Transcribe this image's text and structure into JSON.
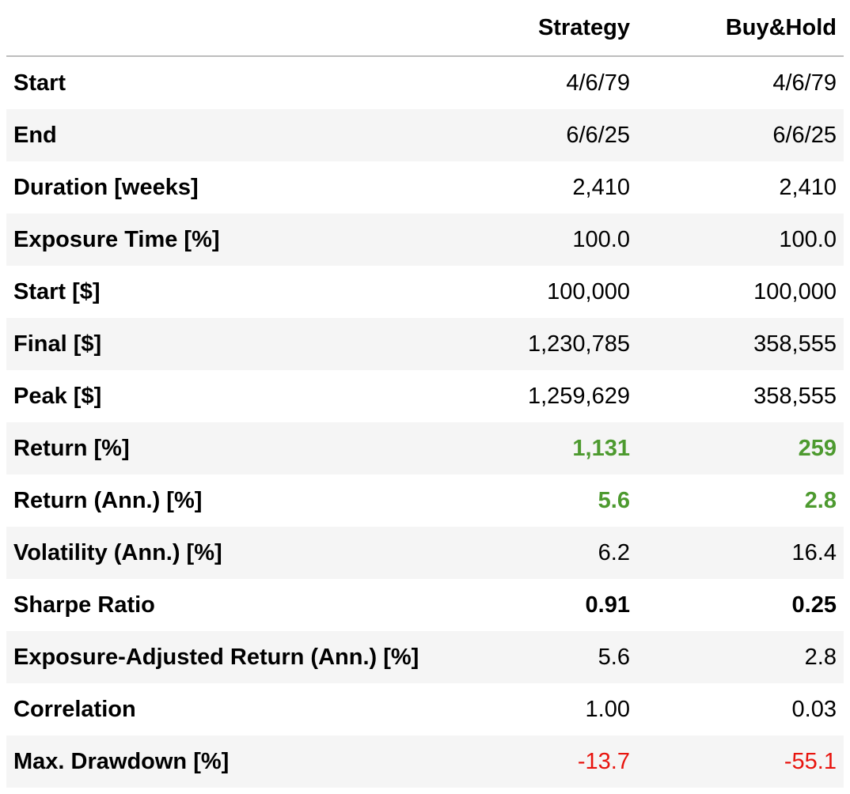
{
  "table": {
    "columns": [
      "Strategy",
      "Buy&Hold"
    ],
    "rows": [
      {
        "label": "Start",
        "values": [
          "4/6/79",
          "4/6/79"
        ]
      },
      {
        "label": "End",
        "values": [
          "6/6/25",
          "6/6/25"
        ]
      },
      {
        "label": "Duration [weeks]",
        "values": [
          "2,410",
          "2,410"
        ]
      },
      {
        "label": "Exposure Time [%]",
        "values": [
          "100.0",
          "100.0"
        ]
      },
      {
        "label": "Start [$]",
        "values": [
          "100,000",
          "100,000"
        ]
      },
      {
        "label": "Final [$]",
        "values": [
          "1,230,785",
          "358,555"
        ]
      },
      {
        "label": "Peak [$]",
        "values": [
          "1,259,629",
          "358,555"
        ]
      },
      {
        "label": "Return [%]",
        "values": [
          "1,131",
          "259"
        ],
        "color": "#4d9a2f",
        "bold": true
      },
      {
        "label": "Return (Ann.) [%]",
        "values": [
          "5.6",
          "2.8"
        ],
        "color": "#4d9a2f",
        "bold": true
      },
      {
        "label": "Volatility (Ann.) [%]",
        "values": [
          "6.2",
          "16.4"
        ]
      },
      {
        "label": "Sharpe Ratio",
        "values": [
          "0.91",
          "0.25"
        ],
        "bold": true
      },
      {
        "label": "Exposure-Adjusted Return (Ann.) [%]",
        "values": [
          "5.6",
          "2.8"
        ]
      },
      {
        "label": "Correlation",
        "values": [
          "1.00",
          "0.03"
        ]
      },
      {
        "label": "Max. Drawdown [%]",
        "values": [
          "-13.7",
          "-55.1"
        ],
        "color": "#e8140e"
      }
    ]
  }
}
